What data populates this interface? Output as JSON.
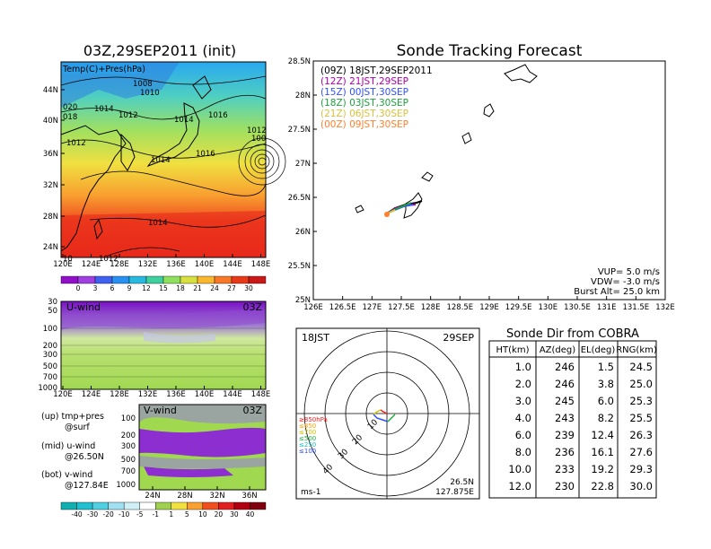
{
  "left_top": {
    "title": "03Z,29SEP2011 (init)",
    "subtitle": "Temp(C)+Pres(hPa)",
    "lat_labels": [
      "44N",
      "40N",
      "36N",
      "32N",
      "28N",
      "24N"
    ],
    "lon_labels": [
      "120E",
      "124E",
      "128E",
      "132E",
      "136E",
      "140E",
      "144E",
      "148E"
    ],
    "pressure_labels": [
      "1008",
      "1010",
      "1014",
      "1012",
      "020",
      "018",
      "1012",
      "1014",
      "1016",
      "1014",
      "1016",
      "1012",
      "100",
      "1014",
      "1012",
      "10"
    ],
    "colorbar_ticks": [
      "0",
      "3",
      "6",
      "9",
      "12",
      "15",
      "18",
      "21",
      "24",
      "27",
      "30"
    ]
  },
  "left_mid": {
    "label": "U-wind",
    "time": "03Z",
    "y_labels": [
      "30",
      "50",
      "100",
      "200",
      "300",
      "500",
      "700",
      "1000"
    ],
    "x_labels": [
      "120E",
      "124E",
      "128E",
      "132E",
      "136E",
      "140E",
      "144E",
      "148E"
    ]
  },
  "left_bot": {
    "label": "V-wind",
    "time": "03Z",
    "y_labels": [
      "100",
      "200",
      "300",
      "500",
      "700",
      "1000"
    ],
    "x_labels": [
      "24N",
      "28N",
      "32N",
      "36N"
    ],
    "colorbar_ticks": [
      "-40",
      "-30",
      "-20",
      "-10",
      "-5",
      "-1",
      "1",
      "5",
      "10",
      "20",
      "30",
      "40"
    ]
  },
  "legend_text": {
    "line1a": "(up) tmp+pres",
    "line1b": "@surf",
    "line2a": "(mid) u-wind",
    "line2b": "@26.50N",
    "line3a": "(bot) v-wind",
    "line3b": "@127.84E"
  },
  "track": {
    "title": "Sonde Tracking Forecast",
    "lat_labels": [
      "28.5N",
      "28N",
      "27.5N",
      "27N",
      "26.5N",
      "26N",
      "25.5N",
      "25N"
    ],
    "lon_labels": [
      "126E",
      "126.5E",
      "127E",
      "127.5E",
      "128E",
      "128.5E",
      "129E",
      "129.5E",
      "130E",
      "130.5E",
      "131E",
      "131.5E",
      "132E"
    ],
    "legend": [
      {
        "text": "(09Z)  18JST,29SEP2011",
        "color": "#000000"
      },
      {
        "text": "(12Z)  21JST,29SEP",
        "color": "#b000b0"
      },
      {
        "text": "(15Z)  00JST,30SEP",
        "color": "#3050ff"
      },
      {
        "text": "(18Z)  03JST,30SEP",
        "color": "#20a040"
      },
      {
        "text": "(21Z)  06JST,30SEP",
        "color": "#d8c040"
      },
      {
        "text": "(00Z)  09JST,30SEP",
        "color": "#ff8030"
      }
    ],
    "info": {
      "vup": "VUP=  5.0  m/s",
      "vdw": "VDW= -3.0  m/s",
      "burst": "Burst Alt=  25.0  km"
    }
  },
  "polar": {
    "time": "18JST",
    "date": "29SEP",
    "ring_labels": [
      "10",
      "20",
      "30",
      "40"
    ],
    "level_labels": [
      "≥850hPa",
      "≤850",
      "≤700",
      "≤500",
      "≤250",
      "≤100"
    ],
    "level_colors": [
      "#ff2020",
      "#ffa000",
      "#d0c000",
      "#20b040",
      "#20c0c0",
      "#3050ff"
    ],
    "units": "ms-1",
    "lat": "26.5N",
    "lon": "127.875E"
  },
  "table": {
    "title": "Sonde Dir from COBRA",
    "headers": [
      "HT(km)",
      "AZ(deg)",
      "EL(deg)",
      "RNG(km)"
    ],
    "rows": [
      [
        "1.0",
        "246",
        "1.5",
        "24.5"
      ],
      [
        "2.0",
        "246",
        "3.8",
        "25.0"
      ],
      [
        "3.0",
        "245",
        "6.0",
        "25.3"
      ],
      [
        "4.0",
        "243",
        "8.2",
        "25.5"
      ],
      [
        "6.0",
        "239",
        "12.4",
        "26.3"
      ],
      [
        "8.0",
        "236",
        "16.1",
        "27.6"
      ],
      [
        "10.0",
        "233",
        "19.2",
        "29.3"
      ],
      [
        "12.0",
        "230",
        "22.8",
        "30.0"
      ]
    ]
  }
}
